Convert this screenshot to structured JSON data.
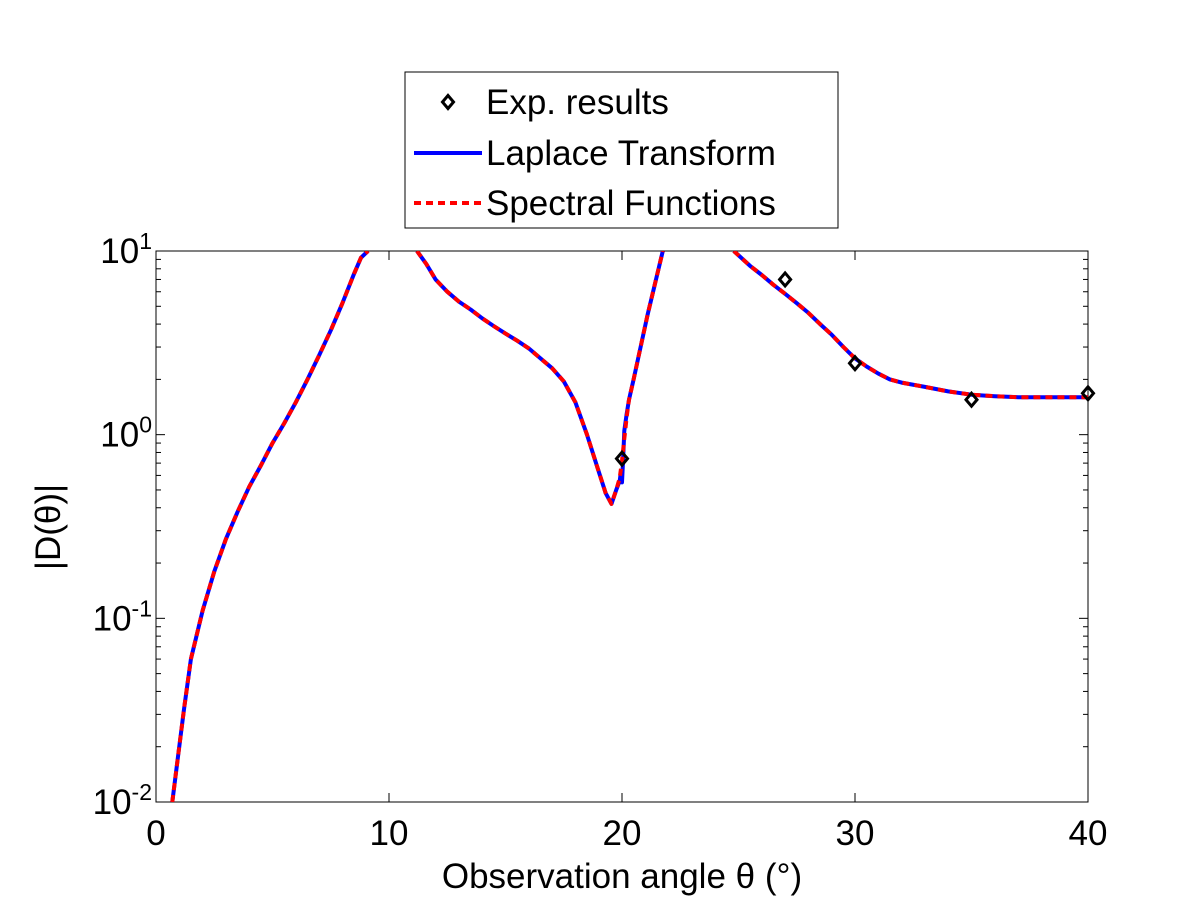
{
  "chart_data": {
    "type": "line",
    "xlabel": "Observation angle θ (°)",
    "ylabel": "|D(θ)|",
    "xlim": [
      0,
      40
    ],
    "ylim": [
      0.01,
      10
    ],
    "yscale": "log",
    "grid": false,
    "legend_position": "top-center",
    "x_ticks": [
      0,
      10,
      20,
      30,
      40
    ],
    "x_tick_labels": [
      "0",
      "10",
      "20",
      "30",
      "40"
    ],
    "y_ticks": [
      0.01,
      0.1,
      1,
      10
    ],
    "y_tick_labels": [
      {
        "base": "10",
        "exp": "-2"
      },
      {
        "base": "10",
        "exp": "-1"
      },
      {
        "base": "10",
        "exp": "0"
      },
      {
        "base": "10",
        "exp": "1"
      }
    ],
    "series": [
      {
        "name": "Exp. results",
        "style": "markers",
        "marker": "diamond",
        "color": "#000000",
        "x": [
          20,
          27,
          30,
          35,
          40
        ],
        "y": [
          0.74,
          7.0,
          2.45,
          1.55,
          1.68
        ]
      },
      {
        "name": "Laplace Transform",
        "style": "solid",
        "color": "#0000ff",
        "segments": [
          {
            "x": [
              0.7,
              0.9,
              1.2,
              1.5,
              2.0,
              2.5,
              3.0,
              3.5,
              4.0,
              4.5,
              5.0,
              5.5,
              6.0,
              6.5,
              7.0,
              7.5,
              8.0,
              8.5,
              8.8,
              9.1
            ],
            "y": [
              0.01,
              0.016,
              0.032,
              0.06,
              0.11,
              0.18,
              0.27,
              0.38,
              0.52,
              0.68,
              0.9,
              1.15,
              1.5,
              2.0,
              2.7,
              3.7,
              5.2,
              7.5,
              9.2,
              10
            ]
          },
          {
            "x": [
              11.2,
              11.6,
              12.0,
              12.5,
              13.0,
              13.5,
              14.0,
              14.5,
              15.0,
              15.5,
              16.0,
              16.5,
              17.0,
              17.5,
              18.0,
              18.5,
              19.0,
              19.3,
              19.55,
              19.75,
              19.9,
              19.95,
              20.0,
              20.05,
              20.1,
              20.2,
              20.3,
              20.5,
              20.8,
              21.1,
              21.4,
              21.75
            ],
            "y": [
              10,
              8.5,
              7.0,
              6.0,
              5.3,
              4.8,
              4.3,
              3.9,
              3.55,
              3.25,
              2.95,
              2.6,
              2.3,
              1.95,
              1.5,
              1.0,
              0.63,
              0.48,
              0.42,
              0.5,
              0.56,
              0.62,
              0.55,
              0.75,
              1.05,
              1.3,
              1.55,
              2.0,
              3.0,
              4.5,
              6.5,
              10
            ]
          },
          {
            "x": [
              24.8,
              25.5,
              26.0,
              26.5,
              27.0,
              27.5,
              28.0,
              28.5,
              29.0,
              29.5,
              30.0,
              30.5,
              31.0,
              31.5,
              32.0,
              33.0,
              34.0,
              35.0,
              36.0,
              37.0,
              38.0,
              39.0,
              40.0
            ],
            "y": [
              10,
              8.3,
              7.4,
              6.55,
              5.85,
              5.2,
              4.6,
              4.0,
              3.5,
              3.0,
              2.6,
              2.35,
              2.15,
              2.0,
              1.92,
              1.82,
              1.72,
              1.65,
              1.62,
              1.6,
              1.6,
              1.6,
              1.6
            ]
          }
        ]
      },
      {
        "name": "Spectral Functions",
        "style": "dashed",
        "color": "#ff0000",
        "segments": [
          {
            "x": [
              0.7,
              0.9,
              1.2,
              1.5,
              2.0,
              2.5,
              3.0,
              3.5,
              4.0,
              4.5,
              5.0,
              5.5,
              6.0,
              6.5,
              7.0,
              7.5,
              8.0,
              8.5,
              8.8,
              9.1
            ],
            "y": [
              0.01,
              0.016,
              0.032,
              0.06,
              0.11,
              0.18,
              0.27,
              0.38,
              0.52,
              0.68,
              0.9,
              1.15,
              1.5,
              2.0,
              2.7,
              3.7,
              5.2,
              7.5,
              9.2,
              10
            ]
          },
          {
            "x": [
              11.2,
              11.6,
              12.0,
              12.5,
              13.0,
              13.5,
              14.0,
              14.5,
              15.0,
              15.5,
              16.0,
              16.5,
              17.0,
              17.5,
              18.0,
              18.5,
              19.0,
              19.3,
              19.55,
              19.75,
              19.9,
              20.0,
              20.1,
              20.2,
              20.3,
              20.5,
              20.8,
              21.1,
              21.4,
              21.75
            ],
            "y": [
              10,
              8.5,
              7.0,
              6.0,
              5.3,
              4.8,
              4.3,
              3.9,
              3.55,
              3.25,
              2.95,
              2.6,
              2.3,
              1.95,
              1.5,
              1.0,
              0.63,
              0.48,
              0.42,
              0.5,
              0.58,
              0.72,
              0.95,
              1.25,
              1.55,
              2.0,
              3.0,
              4.5,
              6.5,
              10
            ]
          },
          {
            "x": [
              24.8,
              25.5,
              26.0,
              26.5,
              27.0,
              27.5,
              28.0,
              28.5,
              29.0,
              29.5,
              30.0,
              30.5,
              31.0,
              31.5,
              32.0,
              33.0,
              34.0,
              35.0,
              36.0,
              37.0,
              38.0,
              39.0,
              40.0
            ],
            "y": [
              10,
              8.3,
              7.4,
              6.55,
              5.85,
              5.2,
              4.6,
              4.0,
              3.5,
              3.0,
              2.6,
              2.35,
              2.15,
              2.0,
              1.92,
              1.82,
              1.72,
              1.65,
              1.62,
              1.6,
              1.6,
              1.6,
              1.6
            ]
          }
        ]
      }
    ]
  }
}
